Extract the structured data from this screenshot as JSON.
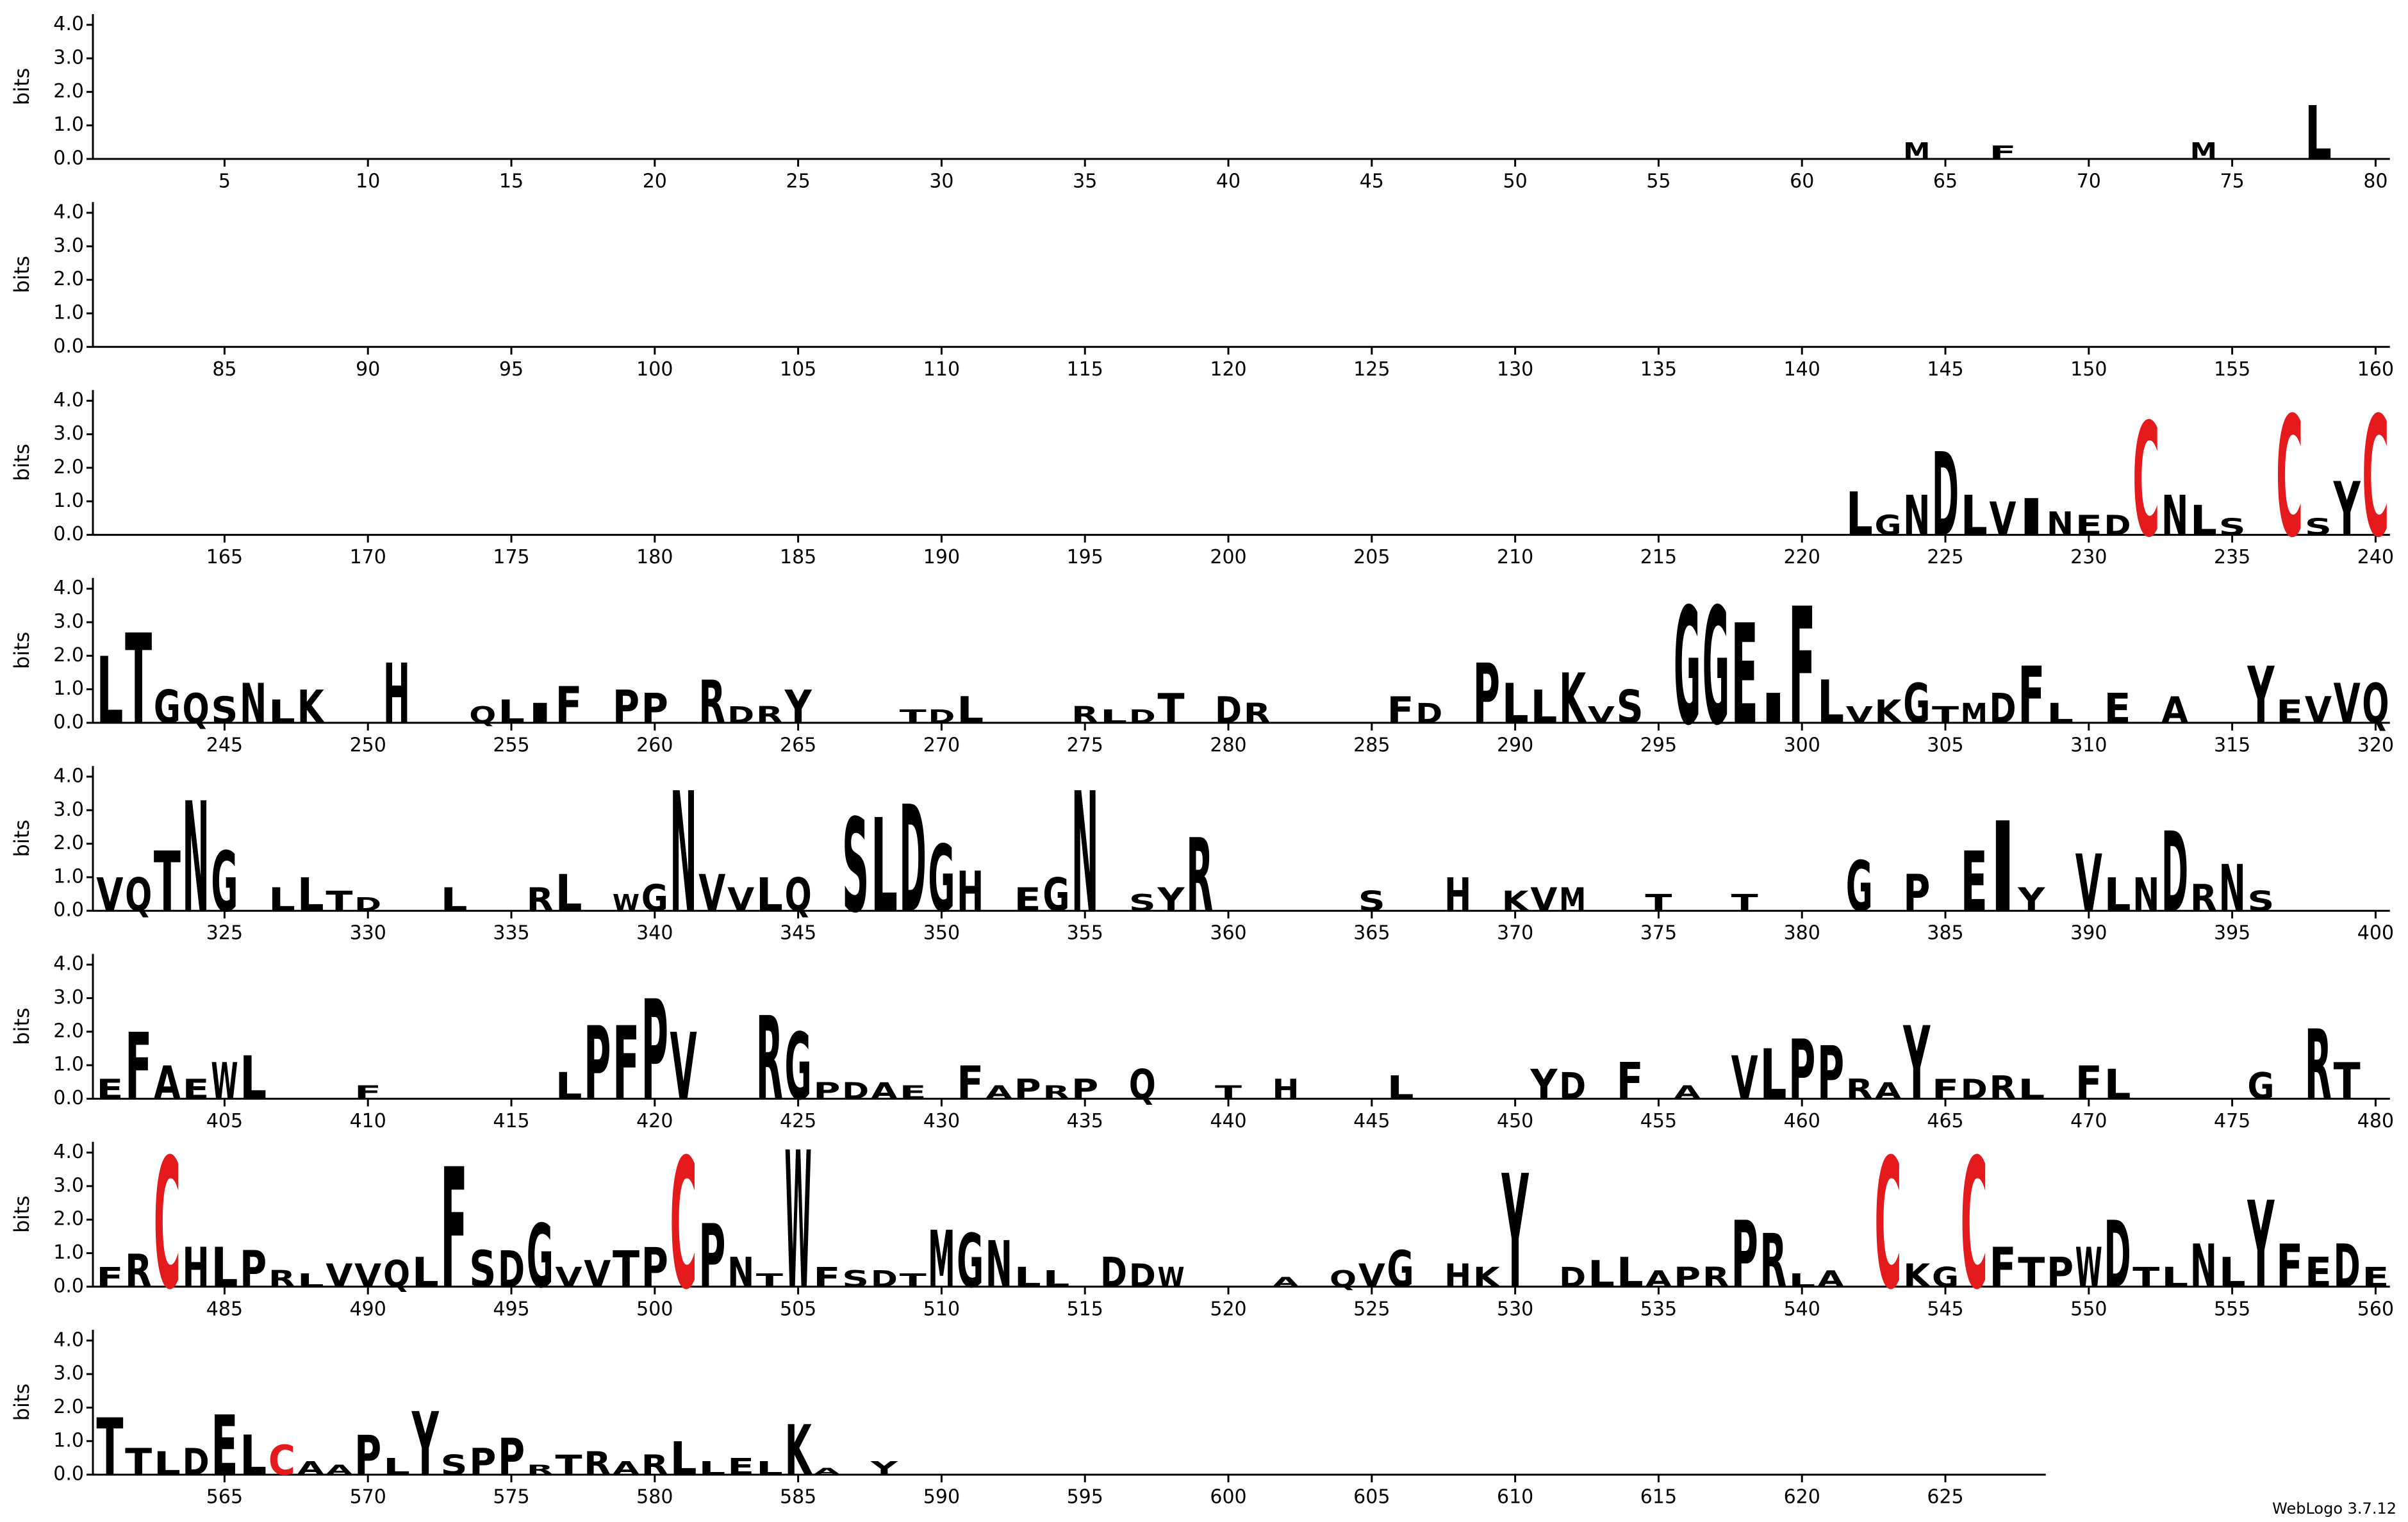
{
  "chart_data": [
    {
      "type": "logo",
      "ylabel": "bits",
      "ylim": [
        0,
        4.32
      ],
      "yticks": [
        {
          "value": 0,
          "label": "0.0"
        },
        {
          "value": 1,
          "label": "1.0"
        },
        {
          "value": 2,
          "label": "2.0"
        },
        {
          "value": 3,
          "label": "3.0"
        },
        {
          "value": 4,
          "label": "4.0"
        }
      ],
      "xlim": [
        0.5,
        80.5
      ],
      "xticks": [
        5,
        10,
        15,
        20,
        25,
        30,
        35,
        40,
        45,
        50,
        55,
        60,
        65,
        70,
        75,
        80
      ],
      "color": "#000000",
      "colors": {
        "C": "#e41a1c"
      },
      "x": [
        64,
        67,
        74,
        78
      ],
      "letters": [
        "M",
        "F",
        "M",
        "L"
      ],
      "values": [
        0.5,
        0.4,
        0.5,
        1.6
      ]
    },
    {
      "type": "logo",
      "ylabel": "bits",
      "ylim": [
        0,
        4.32
      ],
      "yticks": [
        {
          "value": 0,
          "label": "0.0"
        },
        {
          "value": 1,
          "label": "1.0"
        },
        {
          "value": 2,
          "label": "2.0"
        },
        {
          "value": 3,
          "label": "3.0"
        },
        {
          "value": 4,
          "label": "4.0"
        }
      ],
      "xlim": [
        80.5,
        160.5
      ],
      "xticks": [
        85,
        90,
        95,
        100,
        105,
        110,
        115,
        120,
        125,
        130,
        135,
        140,
        145,
        150,
        155,
        160
      ],
      "color": "#000000",
      "colors": {
        "C": "#e41a1c"
      },
      "x": [],
      "letters": [],
      "values": []
    },
    {
      "type": "logo",
      "ylabel": "bits",
      "ylim": [
        0,
        4.32
      ],
      "yticks": [
        {
          "value": 0,
          "label": "0.0"
        },
        {
          "value": 1,
          "label": "1.0"
        },
        {
          "value": 2,
          "label": "2.0"
        },
        {
          "value": 3,
          "label": "3.0"
        },
        {
          "value": 4,
          "label": "4.0"
        }
      ],
      "xlim": [
        160.5,
        240.5
      ],
      "xticks": [
        165,
        170,
        175,
        180,
        185,
        190,
        195,
        200,
        205,
        210,
        215,
        220,
        225,
        230,
        235,
        240
      ],
      "color": "#000000",
      "colors": {
        "C": "#e41a1c"
      },
      "x": [
        222,
        223,
        224,
        225,
        226,
        227,
        228,
        229,
        230,
        231,
        232,
        233,
        234,
        235,
        237,
        238,
        239,
        240
      ],
      "letters": [
        "L",
        "G",
        "N",
        "D",
        "L",
        "V",
        "I",
        "N",
        "E",
        "D",
        "C",
        "N",
        "L",
        "S",
        "C",
        "S",
        "Y",
        "C"
      ],
      "values": [
        1.3,
        0.6,
        1.2,
        2.5,
        1.2,
        1.0,
        1.1,
        0.7,
        0.6,
        0.6,
        3.4,
        1.2,
        0.9,
        0.5,
        3.6,
        0.5,
        1.6,
        3.6
      ]
    },
    {
      "type": "logo",
      "ylabel": "bits",
      "ylim": [
        0,
        4.32
      ],
      "yticks": [
        {
          "value": 0,
          "label": "0.0"
        },
        {
          "value": 1,
          "label": "1.0"
        },
        {
          "value": 2,
          "label": "2.0"
        },
        {
          "value": 3,
          "label": "3.0"
        },
        {
          "value": 4,
          "label": "4.0"
        }
      ],
      "xlim": [
        240.5,
        320.5
      ],
      "xticks": [
        245,
        250,
        255,
        260,
        265,
        270,
        275,
        280,
        285,
        290,
        295,
        300,
        305,
        310,
        315,
        320
      ],
      "color": "#000000",
      "colors": {
        "C": "#e41a1c"
      },
      "x": [
        241,
        242,
        243,
        244,
        245,
        246,
        247,
        248,
        251,
        254,
        255,
        256,
        257,
        259,
        260,
        262,
        263,
        264,
        265,
        269,
        270,
        271,
        275,
        276,
        277,
        278,
        280,
        281,
        286,
        287,
        289,
        290,
        291,
        292,
        293,
        294,
        296,
        297,
        298,
        299,
        300,
        301,
        302,
        303,
        304,
        305,
        306,
        307,
        308,
        309,
        311,
        313,
        316,
        317,
        318,
        319,
        320
      ],
      "letters": [
        "L",
        "T",
        "G",
        "Q",
        "S",
        "N",
        "L",
        "K",
        "H",
        "Q",
        "L",
        "I",
        "F",
        "P",
        "P",
        "R",
        "D",
        "R",
        "Y",
        "T",
        "D",
        "L",
        "R",
        "L",
        "D",
        "T",
        "D",
        "R",
        "F",
        "D",
        "P",
        "L",
        "L",
        "K",
        "V",
        "S",
        "G",
        "G",
        "E",
        "I",
        "F",
        "L",
        "V",
        "K",
        "G",
        "T",
        "M",
        "D",
        "F",
        "L",
        "E",
        "A",
        "Y",
        "E",
        "V",
        "V",
        "Q"
      ],
      "values": [
        2.0,
        2.7,
        1.0,
        0.9,
        0.8,
        1.2,
        0.7,
        1.0,
        1.8,
        0.5,
        0.7,
        0.6,
        1.1,
        1.0,
        0.9,
        1.3,
        0.5,
        0.5,
        1.0,
        0.4,
        0.4,
        0.8,
        0.5,
        0.4,
        0.4,
        0.9,
        0.8,
        0.6,
        0.8,
        0.6,
        1.8,
        1.2,
        1.0,
        1.5,
        0.5,
        1.0,
        3.5,
        3.5,
        3.0,
        0.9,
        3.5,
        1.3,
        0.5,
        0.7,
        1.2,
        0.5,
        0.6,
        0.9,
        1.7,
        0.6,
        0.9,
        0.8,
        1.7,
        0.7,
        0.8,
        1.2,
        1.2
      ]
    },
    {
      "type": "logo",
      "ylabel": "bits",
      "ylim": [
        0,
        4.32
      ],
      "yticks": [
        {
          "value": 0,
          "label": "0.0"
        },
        {
          "value": 1,
          "label": "1.0"
        },
        {
          "value": 2,
          "label": "2.0"
        },
        {
          "value": 3,
          "label": "3.0"
        },
        {
          "value": 4,
          "label": "4.0"
        }
      ],
      "xlim": [
        320.5,
        400.5
      ],
      "xticks": [
        325,
        330,
        335,
        340,
        345,
        350,
        355,
        360,
        365,
        370,
        375,
        380,
        385,
        390,
        395,
        400
      ],
      "color": "#000000",
      "colors": {
        "C": "#e41a1c"
      },
      "x": [
        321,
        322,
        323,
        324,
        325,
        327,
        328,
        329,
        330,
        333,
        336,
        337,
        339,
        340,
        341,
        342,
        343,
        344,
        345,
        347,
        348,
        349,
        350,
        351,
        353,
        354,
        355,
        357,
        358,
        359,
        365,
        368,
        370,
        371,
        372,
        375,
        378,
        382,
        384,
        386,
        387,
        388,
        390,
        391,
        392,
        393,
        394,
        395,
        396
      ],
      "letters": [
        "V",
        "Q",
        "T",
        "N",
        "G",
        "L",
        "L",
        "T",
        "D",
        "L",
        "R",
        "L",
        "W",
        "G",
        "N",
        "V",
        "V",
        "L",
        "Q",
        "S",
        "L",
        "D",
        "G",
        "H",
        "E",
        "G",
        "N",
        "S",
        "Y",
        "R",
        "S",
        "H",
        "K",
        "V",
        "M",
        "T",
        "T",
        "G",
        "P",
        "E",
        "I",
        "Y",
        "V",
        "L",
        "N",
        "D",
        "R",
        "N",
        "S"
      ],
      "values": [
        1.0,
        1.0,
        1.8,
        3.3,
        1.8,
        0.7,
        1.0,
        0.6,
        0.4,
        0.7,
        0.7,
        1.1,
        0.5,
        0.8,
        3.6,
        1.1,
        0.7,
        1.0,
        1.0,
        2.8,
        2.8,
        3.2,
        2.0,
        1.2,
        0.7,
        1.0,
        3.6,
        0.5,
        0.7,
        2.2,
        0.6,
        1.0,
        0.6,
        0.7,
        0.7,
        0.5,
        0.5,
        1.5,
        1.1,
        1.8,
        2.7,
        0.7,
        1.7,
        1.0,
        1.0,
        2.4,
        0.8,
        1.4,
        0.6
      ]
    },
    {
      "type": "logo",
      "ylabel": "bits",
      "ylim": [
        0,
        4.32
      ],
      "yticks": [
        {
          "value": 0,
          "label": "0.0"
        },
        {
          "value": 1,
          "label": "1.0"
        },
        {
          "value": 2,
          "label": "2.0"
        },
        {
          "value": 3,
          "label": "3.0"
        },
        {
          "value": 4,
          "label": "4.0"
        }
      ],
      "xlim": [
        400.5,
        480.5
      ],
      "xticks": [
        405,
        410,
        415,
        420,
        425,
        430,
        435,
        440,
        445,
        450,
        455,
        460,
        465,
        470,
        475,
        480
      ],
      "color": "#000000",
      "colors": {
        "C": "#e41a1c"
      },
      "x": [
        401,
        402,
        403,
        404,
        405,
        406,
        410,
        417,
        418,
        419,
        420,
        421,
        424,
        425,
        426,
        427,
        428,
        429,
        431,
        432,
        433,
        434,
        435,
        437,
        440,
        442,
        446,
        451,
        452,
        454,
        456,
        458,
        459,
        460,
        461,
        462,
        463,
        464,
        465,
        466,
        467,
        468,
        470,
        471,
        476,
        478,
        479
      ],
      "letters": [
        "E",
        "F",
        "A",
        "E",
        "W",
        "L",
        "F",
        "L",
        "P",
        "F",
        "P",
        "V",
        "R",
        "G",
        "P",
        "D",
        "A",
        "E",
        "F",
        "A",
        "P",
        "R",
        "P",
        "Q",
        "T",
        "H",
        "L",
        "Y",
        "D",
        "F",
        "A",
        "V",
        "L",
        "P",
        "P",
        "R",
        "A",
        "Y",
        "F",
        "D",
        "R",
        "L",
        "F",
        "L",
        "G",
        "R",
        "T"
      ],
      "values": [
        0.6,
        2.0,
        1.0,
        0.6,
        1.1,
        1.3,
        0.4,
        0.8,
        2.2,
        2.2,
        3.0,
        2.0,
        2.5,
        2.0,
        0.5,
        0.5,
        0.5,
        0.4,
        1.0,
        0.4,
        0.6,
        0.4,
        0.6,
        0.9,
        0.4,
        0.6,
        0.7,
        0.9,
        0.8,
        1.1,
        0.4,
        1.3,
        1.5,
        1.8,
        1.6,
        0.6,
        0.5,
        2.2,
        0.6,
        0.6,
        0.7,
        0.6,
        1.0,
        0.9,
        0.8,
        2.1,
        1.1
      ]
    },
    {
      "type": "logo",
      "ylabel": "bits",
      "ylim": [
        0,
        4.32
      ],
      "yticks": [
        {
          "value": 0,
          "label": "0.0"
        },
        {
          "value": 1,
          "label": "1.0"
        },
        {
          "value": 2,
          "label": "2.0"
        },
        {
          "value": 3,
          "label": "3.0"
        },
        {
          "value": 4,
          "label": "4.0"
        }
      ],
      "xlim": [
        480.5,
        560.5
      ],
      "xticks": [
        485,
        490,
        495,
        500,
        505,
        510,
        515,
        520,
        525,
        530,
        535,
        540,
        545,
        550,
        555,
        560
      ],
      "color": "#000000",
      "colors": {
        "C": "#e41a1c"
      },
      "x": [
        481,
        482,
        483,
        484,
        485,
        486,
        487,
        488,
        489,
        490,
        491,
        492,
        493,
        494,
        495,
        496,
        497,
        498,
        499,
        500,
        501,
        502,
        503,
        504,
        505,
        506,
        507,
        508,
        509,
        510,
        511,
        512,
        513,
        514,
        516,
        517,
        518,
        522,
        524,
        525,
        526,
        528,
        529,
        530,
        532,
        533,
        534,
        535,
        536,
        537,
        538,
        539,
        540,
        541,
        543,
        544,
        545,
        546,
        547,
        548,
        549,
        550,
        551,
        552,
        553,
        554,
        555,
        556,
        557,
        558,
        559,
        560
      ],
      "letters": [
        "F",
        "R",
        "C",
        "H",
        "L",
        "P",
        "R",
        "L",
        "V",
        "V",
        "Q",
        "L",
        "F",
        "S",
        "D",
        "G",
        "V",
        "V",
        "T",
        "P",
        "C",
        "P",
        "N",
        "T",
        "W",
        "F",
        "S",
        "D",
        "T",
        "M",
        "G",
        "N",
        "L",
        "L",
        "D",
        "D",
        "W",
        "A",
        "Q",
        "V",
        "G",
        "H",
        "K",
        "Y",
        "D",
        "L",
        "L",
        "A",
        "P",
        "R",
        "P",
        "R",
        "L",
        "A",
        "C",
        "K",
        "G",
        "C",
        "F",
        "T",
        "P",
        "W",
        "D",
        "T",
        "L",
        "N",
        "L",
        "Y",
        "F",
        "E",
        "D",
        "E"
      ],
      "values": [
        0.6,
        1.0,
        3.9,
        1.2,
        1.2,
        1.1,
        0.5,
        0.4,
        0.7,
        0.7,
        0.8,
        0.9,
        3.6,
        1.1,
        1.1,
        1.9,
        0.6,
        0.8,
        1.1,
        1.2,
        3.9,
        1.9,
        0.9,
        0.4,
        4.1,
        0.6,
        0.5,
        0.5,
        0.4,
        1.7,
        1.6,
        1.4,
        0.6,
        0.5,
        0.9,
        0.7,
        0.6,
        0.3,
        0.5,
        0.7,
        1.1,
        0.7,
        0.6,
        3.4,
        0.6,
        0.8,
        0.9,
        0.5,
        0.6,
        0.6,
        2.0,
        1.6,
        0.4,
        0.5,
        3.9,
        0.7,
        0.6,
        3.9,
        1.2,
        0.9,
        0.9,
        1.2,
        2.0,
        0.6,
        0.6,
        1.3,
        0.9,
        2.6,
        1.3,
        0.9,
        1.3,
        0.6
      ]
    },
    {
      "type": "logo",
      "ylabel": "bits",
      "ylim": [
        0,
        4.32
      ],
      "yticks": [
        {
          "value": 0,
          "label": "0.0"
        },
        {
          "value": 1,
          "label": "1.0"
        },
        {
          "value": 2,
          "label": "2.0"
        },
        {
          "value": 3,
          "label": "3.0"
        },
        {
          "value": 4,
          "label": "4.0"
        }
      ],
      "xlim": [
        560.5,
        628.5
      ],
      "xticks": [
        565,
        570,
        575,
        580,
        585,
        590,
        595,
        600,
        605,
        610,
        615,
        620,
        625
      ],
      "color": "#000000",
      "colors": {
        "C": "#e41a1c"
      },
      "x": [
        561,
        562,
        563,
        564,
        565,
        566,
        567,
        568,
        569,
        570,
        571,
        572,
        573,
        574,
        575,
        576,
        577,
        578,
        579,
        580,
        581,
        582,
        583,
        584,
        585,
        586,
        588
      ],
      "letters": [
        "T",
        "T",
        "L",
        "D",
        "E",
        "L",
        "C",
        "A",
        "A",
        "P",
        "L",
        "Y",
        "S",
        "P",
        "P",
        "R",
        "T",
        "R",
        "A",
        "R",
        "L",
        "L",
        "E",
        "L",
        "K",
        "A",
        "Y"
      ],
      "values": [
        1.7,
        0.8,
        0.7,
        0.8,
        1.8,
        1.2,
        0.9,
        0.4,
        0.3,
        1.2,
        0.5,
        1.9,
        0.6,
        0.8,
        1.1,
        0.3,
        0.6,
        0.7,
        0.4,
        0.6,
        1.0,
        0.4,
        0.5,
        0.4,
        1.5,
        0.2,
        0.4
      ]
    }
  ],
  "credit": "WebLogo 3.7.12"
}
